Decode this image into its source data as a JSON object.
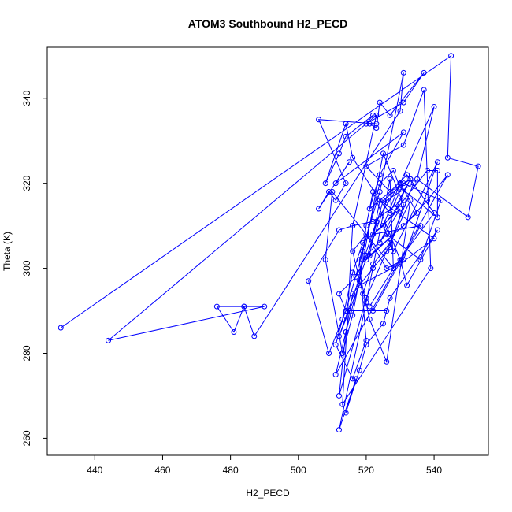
{
  "chart_data": {
    "type": "line",
    "title": "ATOM3 Southbound H2_PECD",
    "xlabel": "H2_PECD",
    "ylabel": "Theta (K)",
    "xlim": [
      426,
      556
    ],
    "ylim": [
      256,
      352
    ],
    "x_ticks": [
      440,
      460,
      480,
      500,
      520,
      540
    ],
    "y_ticks": [
      260,
      280,
      300,
      320,
      340
    ],
    "grid": false,
    "series": [
      {
        "color": "#0000ff",
        "marker": "open-circle",
        "line": true,
        "x": [
          430,
          545,
          544,
          553,
          550,
          535,
          540,
          530,
          523,
          518,
          521,
          526,
          533,
          526,
          520,
          512,
          514,
          518,
          520,
          522,
          527,
          530,
          532,
          541,
          527,
          525,
          520,
          518,
          514,
          517,
          512,
          520,
          527,
          528,
          510,
          508,
          513,
          516,
          525,
          531,
          527,
          522,
          516,
          514,
          511,
          544,
          538,
          531,
          521,
          524,
          540,
          530,
          518,
          515,
          512,
          526,
          534,
          527,
          522,
          519,
          516,
          520,
          526,
          531,
          541,
          528,
          525,
          530,
          535,
          520,
          525,
          533,
          524,
          530,
          522,
          536,
          522,
          526,
          514,
          509,
          503,
          512,
          516,
          522,
          529,
          533,
          527,
          521,
          524,
          531,
          511,
          515,
          506,
          509,
          511,
          514,
          506,
          523,
          521,
          523,
          524,
          527,
          537,
          531,
          520,
          522,
          514,
          512,
          508,
          514,
          516,
          524,
          527,
          531,
          542,
          536,
          526,
          520,
          517,
          512,
          514,
          519,
          524,
          528,
          530,
          541,
          541,
          538,
          531,
          525,
          519,
          516,
          513,
          511,
          516,
          520,
          518,
          524,
          531,
          530,
          487,
          484,
          481,
          476,
          484,
          490,
          444,
          523,
          516,
          513,
          539,
          537,
          531,
          520,
          527,
          532,
          540,
          528,
          521
        ],
        "y": [
          286,
          350,
          326,
          324,
          312,
          321,
          338,
          320,
          311,
          299,
          288,
          278,
          316,
          304,
          293,
          270,
          285,
          297,
          310,
          318,
          308,
          302,
          296,
          309,
          293,
          287,
          282,
          276,
          266,
          274,
          262,
          292,
          321,
          300,
          318,
          302,
          280,
          289,
          327,
          315,
          305,
          300,
          294,
          285,
          275,
          322,
          316,
          310,
          303,
          316,
          307,
          301,
          296,
          290,
          284,
          316,
          320,
          306,
          301,
          294,
          304,
          308,
          300,
          302,
          325,
          304,
          310,
          320,
          313,
          302,
          316,
          321,
          306,
          314,
          308,
          310,
          290,
          290,
          290,
          280,
          297,
          309,
          310,
          311,
          315,
          321,
          318,
          314,
          322,
          332,
          320,
          325,
          314,
          318,
          316,
          320,
          335,
          334,
          334,
          333,
          339,
          336,
          346,
          339,
          334,
          336,
          331,
          327,
          320,
          334,
          326,
          316,
          313,
          320,
          316,
          302,
          308,
          303,
          298,
          294,
          290,
          304,
          320,
          323,
          319,
          312,
          323,
          323,
          316,
          310,
          306,
          299,
          288,
          282,
          274,
          283,
          302,
          318,
          346,
          337,
          284,
          291,
          285,
          291,
          291,
          291,
          283,
          336,
          310,
          268,
          300,
          342,
          329,
          324,
          318,
          322,
          313,
          300,
          291
        ]
      }
    ]
  }
}
